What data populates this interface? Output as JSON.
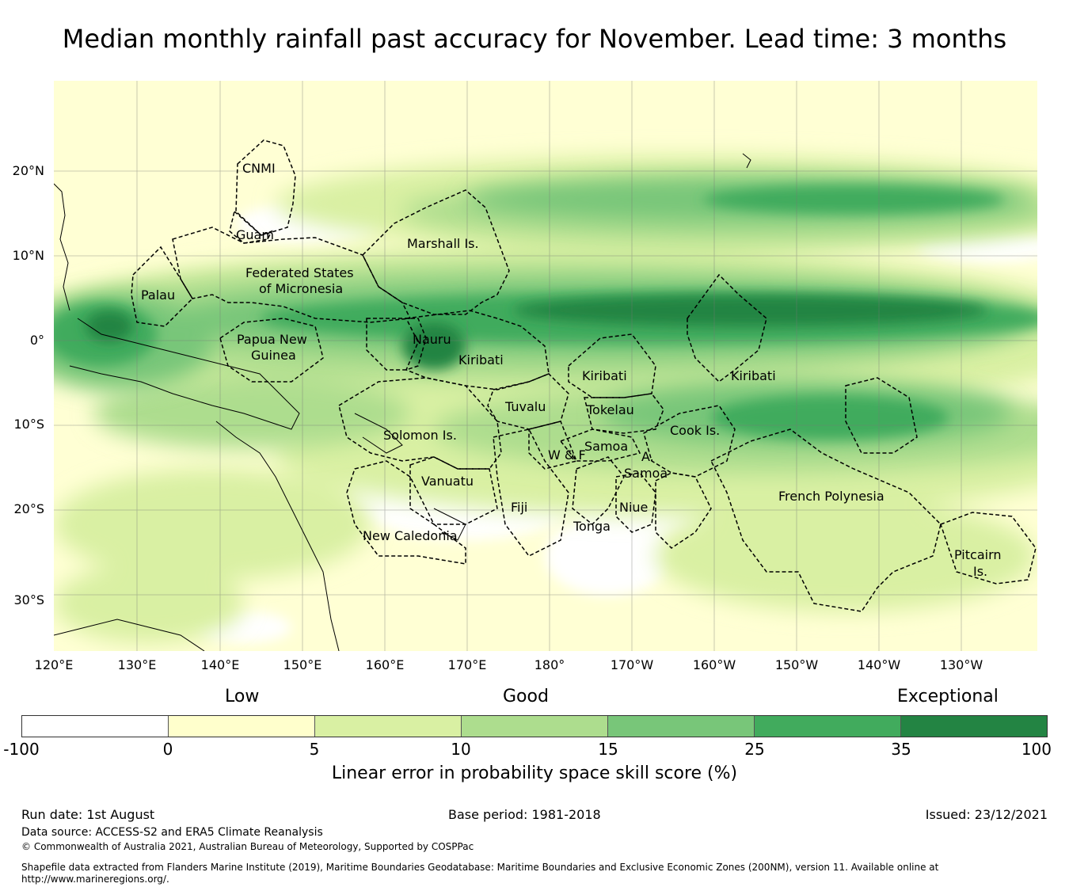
{
  "title": "Median monthly rainfall past accuracy for November. Lead time: 3 months",
  "map": {
    "lat_labels": [
      "20°N",
      "10°N",
      "0°",
      "10°S",
      "20°S",
      "30°S"
    ],
    "lon_labels": [
      "120°E",
      "130°E",
      "140°E",
      "150°E",
      "160°E",
      "170°E",
      "180°",
      "170°W",
      "160°W",
      "150°W",
      "140°W",
      "130°W"
    ],
    "regions": [
      {
        "name": "cnmi",
        "label": "CNMI"
      },
      {
        "name": "guam",
        "label": "Guam"
      },
      {
        "name": "marshall",
        "label": "Marshall Is."
      },
      {
        "name": "fsm-1",
        "label": "Federated States"
      },
      {
        "name": "fsm-2",
        "label": "of Micronesia"
      },
      {
        "name": "palau",
        "label": "Palau"
      },
      {
        "name": "png-1",
        "label": "Papua New"
      },
      {
        "name": "png-2",
        "label": "Guinea"
      },
      {
        "name": "nauru",
        "label": "Nauru"
      },
      {
        "name": "kiribati-west",
        "label": "Kiribati"
      },
      {
        "name": "kiribati-central",
        "label": "Kiribati"
      },
      {
        "name": "kiribati-east",
        "label": "Kiribati"
      },
      {
        "name": "tuvalu",
        "label": "Tuvalu"
      },
      {
        "name": "tokelau",
        "label": "Tokelau"
      },
      {
        "name": "solomon",
        "label": "Solomon Is."
      },
      {
        "name": "samoa",
        "label": "Samoa"
      },
      {
        "name": "wallis-futuna",
        "label": "W & F"
      },
      {
        "name": "american-samoa-1",
        "label": "A."
      },
      {
        "name": "american-samoa-2",
        "label": "Samoa"
      },
      {
        "name": "cook",
        "label": "Cook Is."
      },
      {
        "name": "vanuatu",
        "label": "Vanuatu"
      },
      {
        "name": "fiji",
        "label": "Fiji"
      },
      {
        "name": "niue",
        "label": "Niue"
      },
      {
        "name": "tonga",
        "label": "Tonga"
      },
      {
        "name": "french-polynesia",
        "label": "French Polynesia"
      },
      {
        "name": "new-caledonia",
        "label": "New Caledonia"
      },
      {
        "name": "pitcairn-1",
        "label": "Pitcairn"
      },
      {
        "name": "pitcairn-2",
        "label": "Is."
      }
    ]
  },
  "legend": {
    "categories": [
      "Low",
      "Good",
      "Exceptional"
    ],
    "colors": [
      "#ffffff",
      "#ffffcc",
      "#d9f0a3",
      "#addd8e",
      "#78c679",
      "#41ab5d",
      "#238443"
    ],
    "ticks": [
      "-100",
      "0",
      "5",
      "10",
      "15",
      "25",
      "35",
      "100"
    ],
    "caption": "Linear error in probability space skill score (%)"
  },
  "footer": {
    "run_date": "Run date: 1st August",
    "base_period": "Base period: 1981-2018",
    "issued": "Issued: 23/12/2021",
    "data_source": "Data source: ACCESS-S2 and ERA5 Climate Reanalysis",
    "copyright": "© Commonwealth of Australia 2021, Australian Bureau of Meteorology, Supported by COSPPac",
    "shapefile_1": "Shapefile data extracted from Flanders Marine Institute (2019), Maritime Boundaries Geodatabase: Maritime Boundaries and Exclusive Economic Zones (200NM), version 11. Available online at",
    "shapefile_2": "http://www.marineregions.org/."
  }
}
